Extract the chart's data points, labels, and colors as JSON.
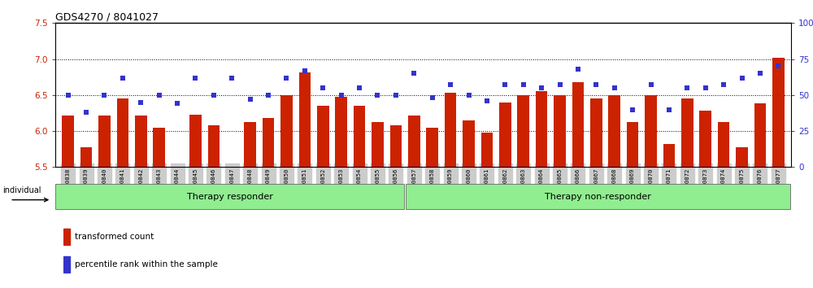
{
  "title": "GDS4270 / 8041027",
  "samples": [
    "GSM530838",
    "GSM530839",
    "GSM530840",
    "GSM530841",
    "GSM530842",
    "GSM530843",
    "GSM530844",
    "GSM530845",
    "GSM530846",
    "GSM530847",
    "GSM530848",
    "GSM530849",
    "GSM530850",
    "GSM530851",
    "GSM530852",
    "GSM530853",
    "GSM530854",
    "GSM530855",
    "GSM530856",
    "GSM530857",
    "GSM530858",
    "GSM530859",
    "GSM530860",
    "GSM530861",
    "GSM530862",
    "GSM530863",
    "GSM530864",
    "GSM530865",
    "GSM530866",
    "GSM530867",
    "GSM530868",
    "GSM530869",
    "GSM530870",
    "GSM530871",
    "GSM530872",
    "GSM530873",
    "GSM530874",
    "GSM530875",
    "GSM530876",
    "GSM530877"
  ],
  "bar_values": [
    6.22,
    5.78,
    6.22,
    6.45,
    6.22,
    6.05,
    5.5,
    6.23,
    6.08,
    5.5,
    6.12,
    6.18,
    6.5,
    6.82,
    6.35,
    6.48,
    6.35,
    6.12,
    6.08,
    6.22,
    6.05,
    6.53,
    6.15,
    5.98,
    6.4,
    6.5,
    6.55,
    6.5,
    6.68,
    6.45,
    6.5,
    6.12,
    6.5,
    5.82,
    6.45,
    6.28,
    6.12,
    5.78,
    6.38,
    7.02
  ],
  "dot_values": [
    50,
    38,
    50,
    62,
    45,
    50,
    44,
    62,
    50,
    62,
    47,
    50,
    62,
    67,
    55,
    50,
    55,
    50,
    50,
    65,
    48,
    57,
    50,
    46,
    57,
    57,
    55,
    57,
    68,
    57,
    55,
    40,
    57,
    40,
    55,
    55,
    57,
    62,
    65,
    70
  ],
  "group1_label": "Therapy responder",
  "group1_count": 19,
  "group2_label": "Therapy non-responder",
  "group2_count": 21,
  "ylim_left": [
    5.5,
    7.5
  ],
  "ylim_right": [
    0,
    100
  ],
  "yticks_left": [
    5.5,
    6.0,
    6.5,
    7.0,
    7.5
  ],
  "yticks_right": [
    0,
    25,
    50,
    75,
    100
  ],
  "gridlines_at": [
    6.0,
    6.5,
    7.0
  ],
  "bar_color": "#CC2200",
  "dot_color": "#3333CC",
  "bg_color": "#FFFFFF",
  "label_color_left": "#CC2200",
  "label_color_right": "#3333CC",
  "xtick_bg": "#CCCCCC",
  "group_bg_color": "#90EE90",
  "group_border_color": "#666666",
  "individual_label": "individual",
  "legend_bar_label": "transformed count",
  "legend_dot_label": "percentile rank within the sample",
  "fig_width": 10.0,
  "fig_height": 3.54,
  "dpi": 100
}
